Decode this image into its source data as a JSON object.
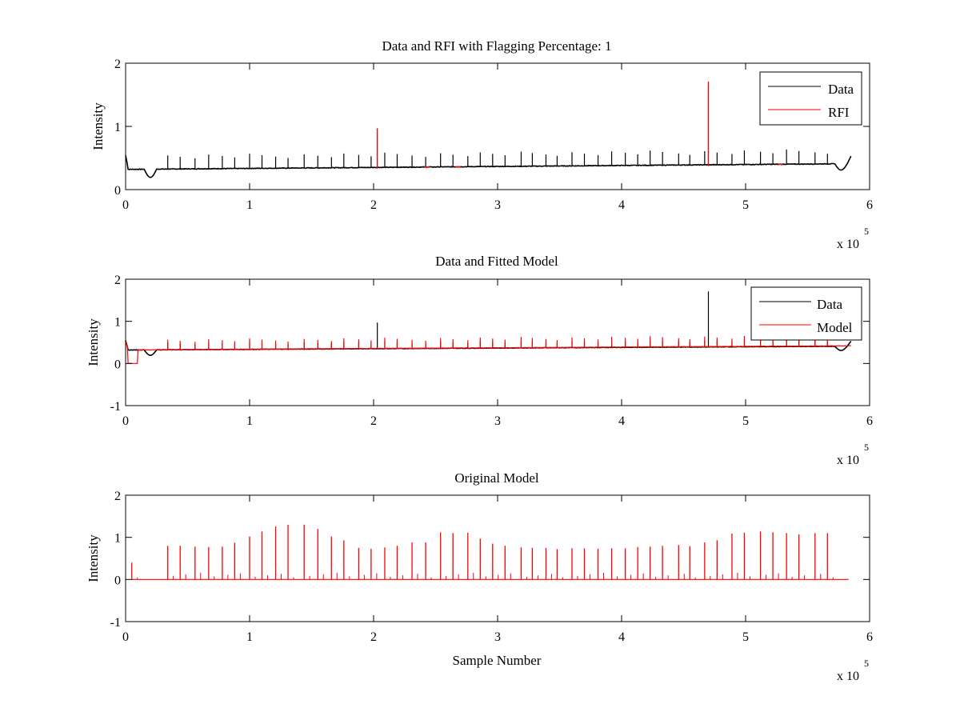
{
  "figure": {
    "background": "#ffffff",
    "colors": {
      "data": "#000000",
      "red": "#ff0000",
      "axis": "#000000"
    }
  },
  "chart_data": [
    {
      "type": "line",
      "title": "Data and RFI with Flagging Percentage: 1",
      "xlabel": "",
      "ylabel": "Intensity",
      "xlim": [
        0,
        6
      ],
      "ylim": [
        0,
        2
      ],
      "xticks": [
        "0",
        "1",
        "2",
        "3",
        "4",
        "5",
        "6"
      ],
      "yticks": [
        "0",
        "1",
        "2"
      ],
      "xscale_note": "x 10",
      "xscale_exponent": "5",
      "legend": {
        "position": "top-right",
        "entries": [
          "Data",
          "RFI"
        ]
      },
      "series": [
        {
          "name": "Data",
          "color": "#000000",
          "role": "baseline",
          "baseline_start": 0.32,
          "baseline_end": 0.41,
          "peak_height": 0.2,
          "dip_start_depth": 0.13,
          "dip_end_depth": 0.1
        },
        {
          "name": "RFI",
          "color": "#ff0000",
          "role": "rfi",
          "spikes": [
            [
              2.03,
              0.97
            ],
            [
              4.7,
              1.71
            ]
          ]
        }
      ],
      "grid": false
    },
    {
      "type": "line",
      "title": "Data and Fitted Model",
      "xlabel": "",
      "ylabel": "Intensity",
      "xlim": [
        0,
        6
      ],
      "ylim": [
        -1,
        2
      ],
      "xticks": [
        "0",
        "1",
        "2",
        "3",
        "4",
        "5",
        "6"
      ],
      "yticks": [
        "-1",
        "0",
        "1",
        "2"
      ],
      "xscale_note": "x 10",
      "xscale_exponent": "5",
      "legend": {
        "position": "top-right",
        "entries": [
          "Data",
          "Model"
        ]
      },
      "series": [
        {
          "name": "Data",
          "color": "#000000",
          "role": "baseline",
          "baseline_start": 0.32,
          "baseline_end": 0.41,
          "peak_height": 0.15,
          "dip_start_depth": 0.13,
          "dip_end_depth": 0.1,
          "spikes": [
            [
              2.03,
              0.97
            ],
            [
              4.7,
              1.71
            ]
          ]
        },
        {
          "name": "Model",
          "color": "#ff0000",
          "role": "model",
          "baseline_start": 0.32,
          "baseline_end": 0.42,
          "peak_height": 0.22,
          "step": [
            0.0,
            0.1,
            0.0
          ]
        }
      ],
      "grid": false
    },
    {
      "type": "line",
      "title": "Original Model",
      "xlabel": "Sample Number",
      "ylabel": "Intensity",
      "xlim": [
        0,
        6
      ],
      "ylim": [
        -1,
        2
      ],
      "xticks": [
        "0",
        "1",
        "2",
        "3",
        "4",
        "5",
        "6"
      ],
      "yticks": [
        "-1",
        "0",
        "1",
        "2"
      ],
      "xscale_note": "x 10",
      "xscale_exponent": "5",
      "legend": null,
      "series": [
        {
          "name": "",
          "color": "#ff0000",
          "role": "peaks",
          "x_start": 0.05,
          "x_end": 5.83,
          "peaks": [
            [
              0.05,
              0.4
            ],
            [
              0.34,
              0.8
            ],
            [
              0.44,
              0.8
            ],
            [
              0.56,
              0.78
            ],
            [
              0.67,
              0.77
            ],
            [
              0.78,
              0.78
            ],
            [
              0.88,
              0.87
            ],
            [
              1.0,
              1.02
            ],
            [
              1.1,
              1.14
            ],
            [
              1.21,
              1.26
            ],
            [
              1.31,
              1.3
            ],
            [
              1.44,
              1.3
            ],
            [
              1.55,
              1.2
            ],
            [
              1.66,
              1.02
            ],
            [
              1.76,
              0.93
            ],
            [
              1.88,
              0.75
            ],
            [
              1.98,
              0.73
            ],
            [
              2.09,
              0.76
            ],
            [
              2.19,
              0.8
            ],
            [
              2.31,
              0.88
            ],
            [
              2.42,
              0.88
            ],
            [
              2.54,
              1.12
            ],
            [
              2.64,
              1.1
            ],
            [
              2.76,
              1.11
            ],
            [
              2.86,
              0.97
            ],
            [
              2.96,
              0.85
            ],
            [
              3.06,
              0.8
            ],
            [
              3.19,
              0.76
            ],
            [
              3.28,
              0.75
            ],
            [
              3.39,
              0.75
            ],
            [
              3.48,
              0.72
            ],
            [
              3.6,
              0.74
            ],
            [
              3.7,
              0.74
            ],
            [
              3.81,
              0.73
            ],
            [
              3.92,
              0.74
            ],
            [
              4.03,
              0.74
            ],
            [
              4.13,
              0.77
            ],
            [
              4.23,
              0.78
            ],
            [
              4.33,
              0.8
            ],
            [
              4.46,
              0.82
            ],
            [
              4.55,
              0.79
            ],
            [
              4.67,
              0.88
            ],
            [
              4.77,
              0.93
            ],
            [
              4.89,
              1.09
            ],
            [
              4.99,
              1.11
            ],
            [
              5.12,
              1.14
            ],
            [
              5.22,
              1.12
            ],
            [
              5.33,
              1.1
            ],
            [
              5.43,
              1.07
            ],
            [
              5.56,
              1.1
            ],
            [
              5.66,
              1.1
            ]
          ]
        }
      ],
      "grid": false
    }
  ]
}
